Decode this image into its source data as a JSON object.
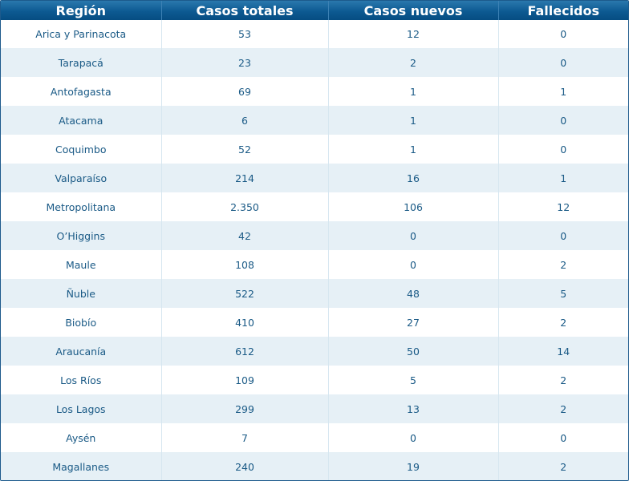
{
  "table": {
    "headers": [
      "Región",
      "Casos totales",
      "Casos nuevos",
      "Fallecidos"
    ],
    "rows": [
      [
        "Arica y Parinacota",
        "53",
        "12",
        "0"
      ],
      [
        "Tarapacá",
        "23",
        "2",
        "0"
      ],
      [
        "Antofagasta",
        "69",
        "1",
        "1"
      ],
      [
        "Atacama",
        "6",
        "1",
        "0"
      ],
      [
        "Coquimbo",
        "52",
        "1",
        "0"
      ],
      [
        "Valparaíso",
        "214",
        "16",
        "1"
      ],
      [
        "Metropolitana",
        "2.350",
        "106",
        "12"
      ],
      [
        "O’Higgins",
        "42",
        "0",
        "0"
      ],
      [
        "Maule",
        "108",
        "0",
        "2"
      ],
      [
        "Ñuble",
        "522",
        "48",
        "5"
      ],
      [
        "Biobío",
        "410",
        "27",
        "2"
      ],
      [
        "Araucanía",
        "612",
        "50",
        "14"
      ],
      [
        "Los Ríos",
        "109",
        "5",
        "2"
      ],
      [
        "Los Lagos",
        "299",
        "13",
        "2"
      ],
      [
        "Aysén",
        "7",
        "0",
        "0"
      ],
      [
        "Magallanes",
        "240",
        "19",
        "2"
      ]
    ]
  },
  "colors": {
    "header_bg": "#0d5a92",
    "header_text": "#ffffff",
    "row_alt_bg": "#e6f0f6",
    "cell_text": "#1a5a86"
  }
}
